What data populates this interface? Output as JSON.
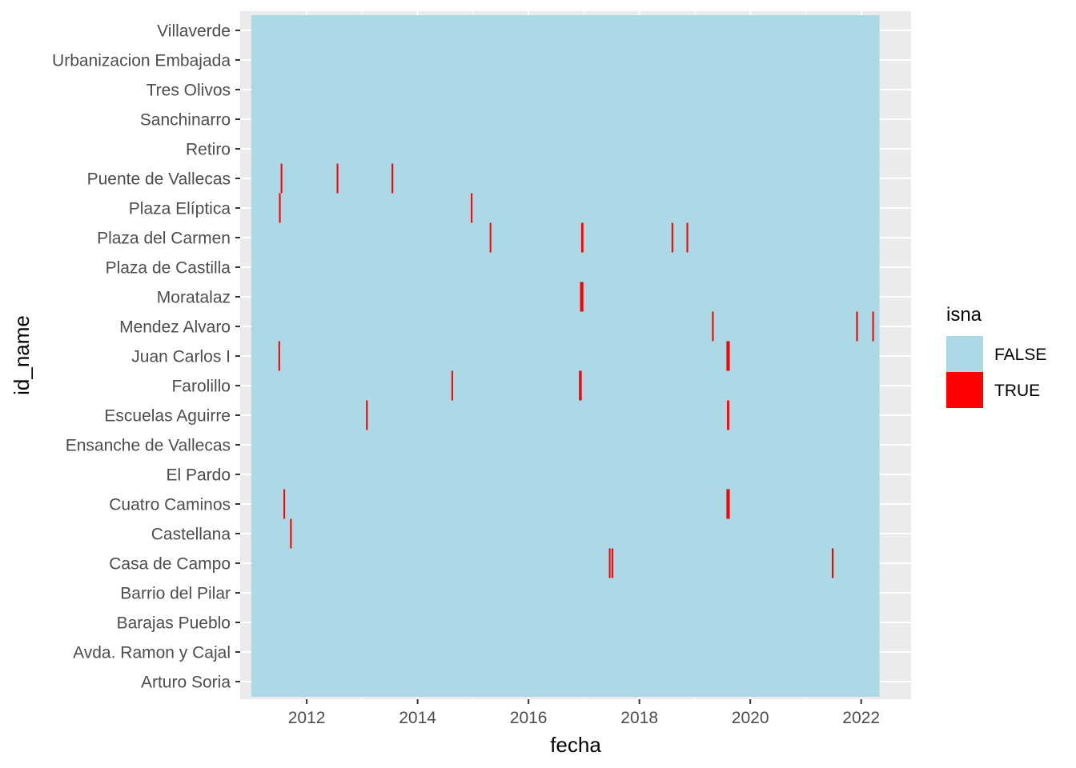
{
  "chart_data": {
    "type": "heatmap",
    "xlabel": "fecha",
    "ylabel": "id_name",
    "x_ticks": [
      2012,
      2014,
      2016,
      2018,
      2020,
      2022
    ],
    "xlim": [
      2010.8,
      2022.9
    ],
    "data_range": [
      2011.0,
      2022.33
    ],
    "stations": [
      "Villaverde",
      "Urbanizacion Embajada",
      "Tres Olivos",
      "Sanchinarro",
      "Retiro",
      "Puente de Vallecas",
      "Plaza Elíptica",
      "Plaza del Carmen",
      "Plaza de Castilla",
      "Moratalaz",
      "Mendez Alvaro",
      "Juan Carlos I",
      "Farolillo",
      "Escuelas Aguirre",
      "Ensanche de Vallecas",
      "El Pardo",
      "Cuatro Caminos",
      "Castellana",
      "Casa de Campo",
      "Barrio del Pilar",
      "Barajas Pueblo",
      "Avda. Ramon y Cajal",
      "Arturo Soria"
    ],
    "missing": [
      {
        "station": "Puente de Vallecas",
        "start": 2011.53,
        "end": 2011.56
      },
      {
        "station": "Puente de Vallecas",
        "start": 2012.54,
        "end": 2012.57
      },
      {
        "station": "Puente de Vallecas",
        "start": 2013.53,
        "end": 2013.56
      },
      {
        "station": "Plaza Elíptica",
        "start": 2011.5,
        "end": 2011.53
      },
      {
        "station": "Plaza Elíptica",
        "start": 2014.96,
        "end": 2014.99
      },
      {
        "station": "Plaza del Carmen",
        "start": 2015.3,
        "end": 2015.33
      },
      {
        "station": "Plaza del Carmen",
        "start": 2016.95,
        "end": 2016.99
      },
      {
        "station": "Plaza del Carmen",
        "start": 2018.58,
        "end": 2018.61
      },
      {
        "station": "Plaza del Carmen",
        "start": 2018.85,
        "end": 2018.88
      },
      {
        "station": "Moratalaz",
        "start": 2016.93,
        "end": 2016.99
      },
      {
        "station": "Mendez Alvaro",
        "start": 2019.31,
        "end": 2019.34
      },
      {
        "station": "Mendez Alvaro",
        "start": 2021.91,
        "end": 2021.94
      },
      {
        "station": "Mendez Alvaro",
        "start": 2022.2,
        "end": 2022.23
      },
      {
        "station": "Juan Carlos I",
        "start": 2011.49,
        "end": 2011.52
      },
      {
        "station": "Juan Carlos I",
        "start": 2019.57,
        "end": 2019.63
      },
      {
        "station": "Farolillo",
        "start": 2014.61,
        "end": 2014.64
      },
      {
        "station": "Farolillo",
        "start": 2016.91,
        "end": 2016.96
      },
      {
        "station": "Escuelas Aguirre",
        "start": 2013.07,
        "end": 2013.1
      },
      {
        "station": "Escuelas Aguirre",
        "start": 2019.58,
        "end": 2019.62
      },
      {
        "station": "Cuatro Caminos",
        "start": 2011.58,
        "end": 2011.61
      },
      {
        "station": "Cuatro Caminos",
        "start": 2019.57,
        "end": 2019.63
      },
      {
        "station": "Castellana",
        "start": 2011.7,
        "end": 2011.73
      },
      {
        "station": "Casa de Campo",
        "start": 2017.45,
        "end": 2017.48
      },
      {
        "station": "Casa de Campo",
        "start": 2017.5,
        "end": 2017.53
      },
      {
        "station": "Casa de Campo",
        "start": 2021.47,
        "end": 2021.5
      }
    ],
    "legend": {
      "title": "isna",
      "position": "right",
      "items": [
        {
          "label": "FALSE",
          "color": "#add8e6"
        },
        {
          "label": "TRUE",
          "color": "#ff0000"
        }
      ]
    },
    "grid": true,
    "panel_background": "#ebebeb",
    "grid_color": "#ffffff"
  }
}
